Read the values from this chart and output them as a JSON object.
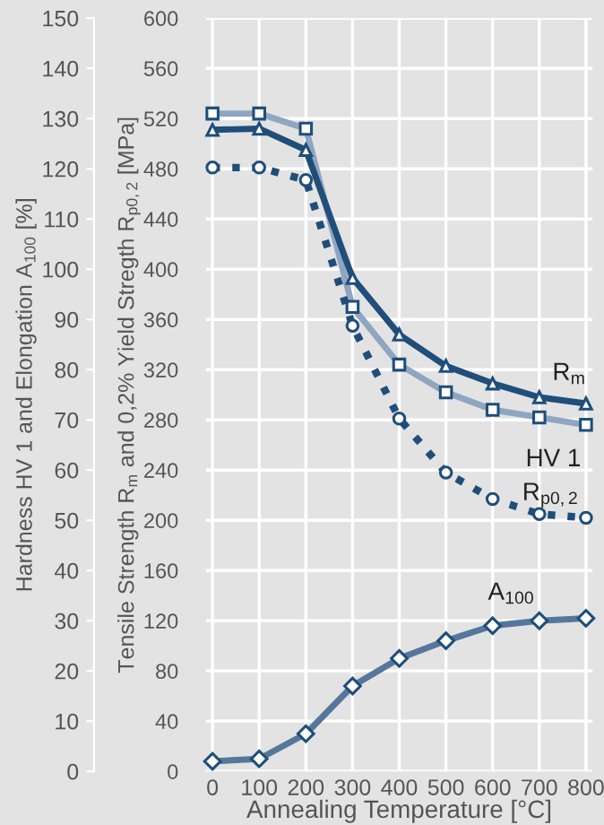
{
  "chart_data": {
    "type": "line",
    "xlabel": "Annealing Temperature [°C]",
    "ylabel": "Hardness HV 1 and Elongation A$_{100}$ [%]",
    "y2label": "Tensile Strength R$_{m}$ and 0,2% Yield Stregth R$_{p0,2}$ [MPa]",
    "x": [
      0,
      100,
      200,
      300,
      400,
      500,
      600,
      700,
      800
    ],
    "series": [
      {
        "name": "R$_{m}$",
        "axis": "y2",
        "color": "#1f4e7a",
        "marker": "triangle",
        "line_style": "solid",
        "values": [
          511,
          512,
          495,
          393,
          348,
          323,
          309,
          298,
          293
        ]
      },
      {
        "name": "HV 1",
        "axis": "y",
        "color": "#8fa6c2",
        "marker": "square",
        "line_style": "solid",
        "values": [
          131,
          131,
          128,
          92.5,
          81,
          75.5,
          72,
          70.5,
          69
        ]
      },
      {
        "name": "R$_{p0,2}$",
        "axis": "y2",
        "color": "#1f4e7a",
        "marker": "circle",
        "line_style": "dotted",
        "values": [
          481,
          481,
          471,
          355,
          281,
          238,
          217,
          205,
          202
        ]
      },
      {
        "name": "A$_{100}$",
        "axis": "y",
        "color": "#56779c",
        "marker": "diamond",
        "line_style": "solid",
        "values": [
          2,
          2.5,
          7.5,
          17,
          22.5,
          26,
          29,
          30,
          30.5
        ]
      }
    ],
    "xlim": [
      -14,
      814
    ],
    "xticks": [
      0,
      100,
      200,
      300,
      400,
      500,
      600,
      700,
      800
    ],
    "ylim": [
      0,
      150
    ],
    "yticks": [
      0,
      10,
      20,
      30,
      40,
      50,
      60,
      70,
      80,
      90,
      100,
      110,
      120,
      130,
      140,
      150
    ],
    "y2lim": [
      0,
      600
    ],
    "y2ticks": [
      0,
      40,
      80,
      120,
      160,
      200,
      240,
      280,
      320,
      360,
      400,
      440,
      480,
      520,
      560,
      600
    ],
    "grid": true
  }
}
